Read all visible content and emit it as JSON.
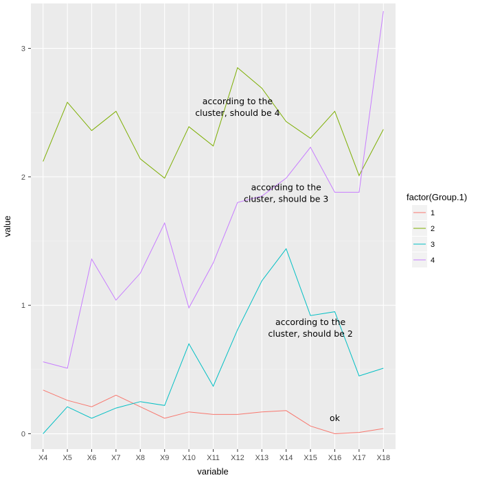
{
  "chart_data": {
    "type": "line",
    "xlabel": "variable",
    "ylabel": "value",
    "categories": [
      "X4",
      "X5",
      "X6",
      "X7",
      "X8",
      "X9",
      "X10",
      "X11",
      "X12",
      "X13",
      "X14",
      "X15",
      "X16",
      "X17",
      "X18"
    ],
    "ylim": [
      -0.12,
      3.35
    ],
    "y_ticks": [
      0,
      1,
      2,
      3
    ],
    "y_tick_labels": [
      "0",
      "1",
      "2",
      "3"
    ],
    "grid": true,
    "legend": {
      "title": "factor(Group.1)",
      "placement": "right"
    },
    "series": [
      {
        "name": "1",
        "color": "#F8766D",
        "values": [
          0.34,
          0.26,
          0.21,
          0.3,
          0.21,
          0.12,
          0.17,
          0.15,
          0.15,
          0.17,
          0.18,
          0.06,
          0.0,
          0.01,
          0.04
        ]
      },
      {
        "name": "2",
        "color": "#7CAE00",
        "values": [
          2.12,
          2.58,
          2.36,
          2.51,
          2.14,
          1.99,
          2.39,
          2.24,
          2.85,
          2.69,
          2.43,
          2.3,
          2.51,
          2.01,
          2.37
        ]
      },
      {
        "name": "3",
        "color": "#00BFC4",
        "values": [
          0.0,
          0.21,
          0.12,
          0.2,
          0.25,
          0.22,
          0.7,
          0.37,
          0.81,
          1.19,
          1.44,
          0.92,
          0.95,
          0.45,
          0.51
        ]
      },
      {
        "name": "4",
        "color": "#C77CFF",
        "values": [
          0.56,
          0.51,
          1.36,
          1.04,
          1.25,
          1.64,
          0.98,
          1.33,
          1.8,
          1.85,
          1.99,
          2.23,
          1.88,
          1.88,
          3.29
        ]
      }
    ],
    "annotations": [
      {
        "lines": [
          "according to the",
          "cluster, should be 4"
        ],
        "x": "X12",
        "y": 2.52
      },
      {
        "lines": [
          "according to the",
          "cluster, should be 3"
        ],
        "x": "X14",
        "y": 1.85
      },
      {
        "lines": [
          "according to the",
          "cluster, should be 2"
        ],
        "x": "X15",
        "y": 0.8
      },
      {
        "lines": [
          "ok"
        ],
        "x": "X16",
        "y": 0.1
      }
    ]
  }
}
